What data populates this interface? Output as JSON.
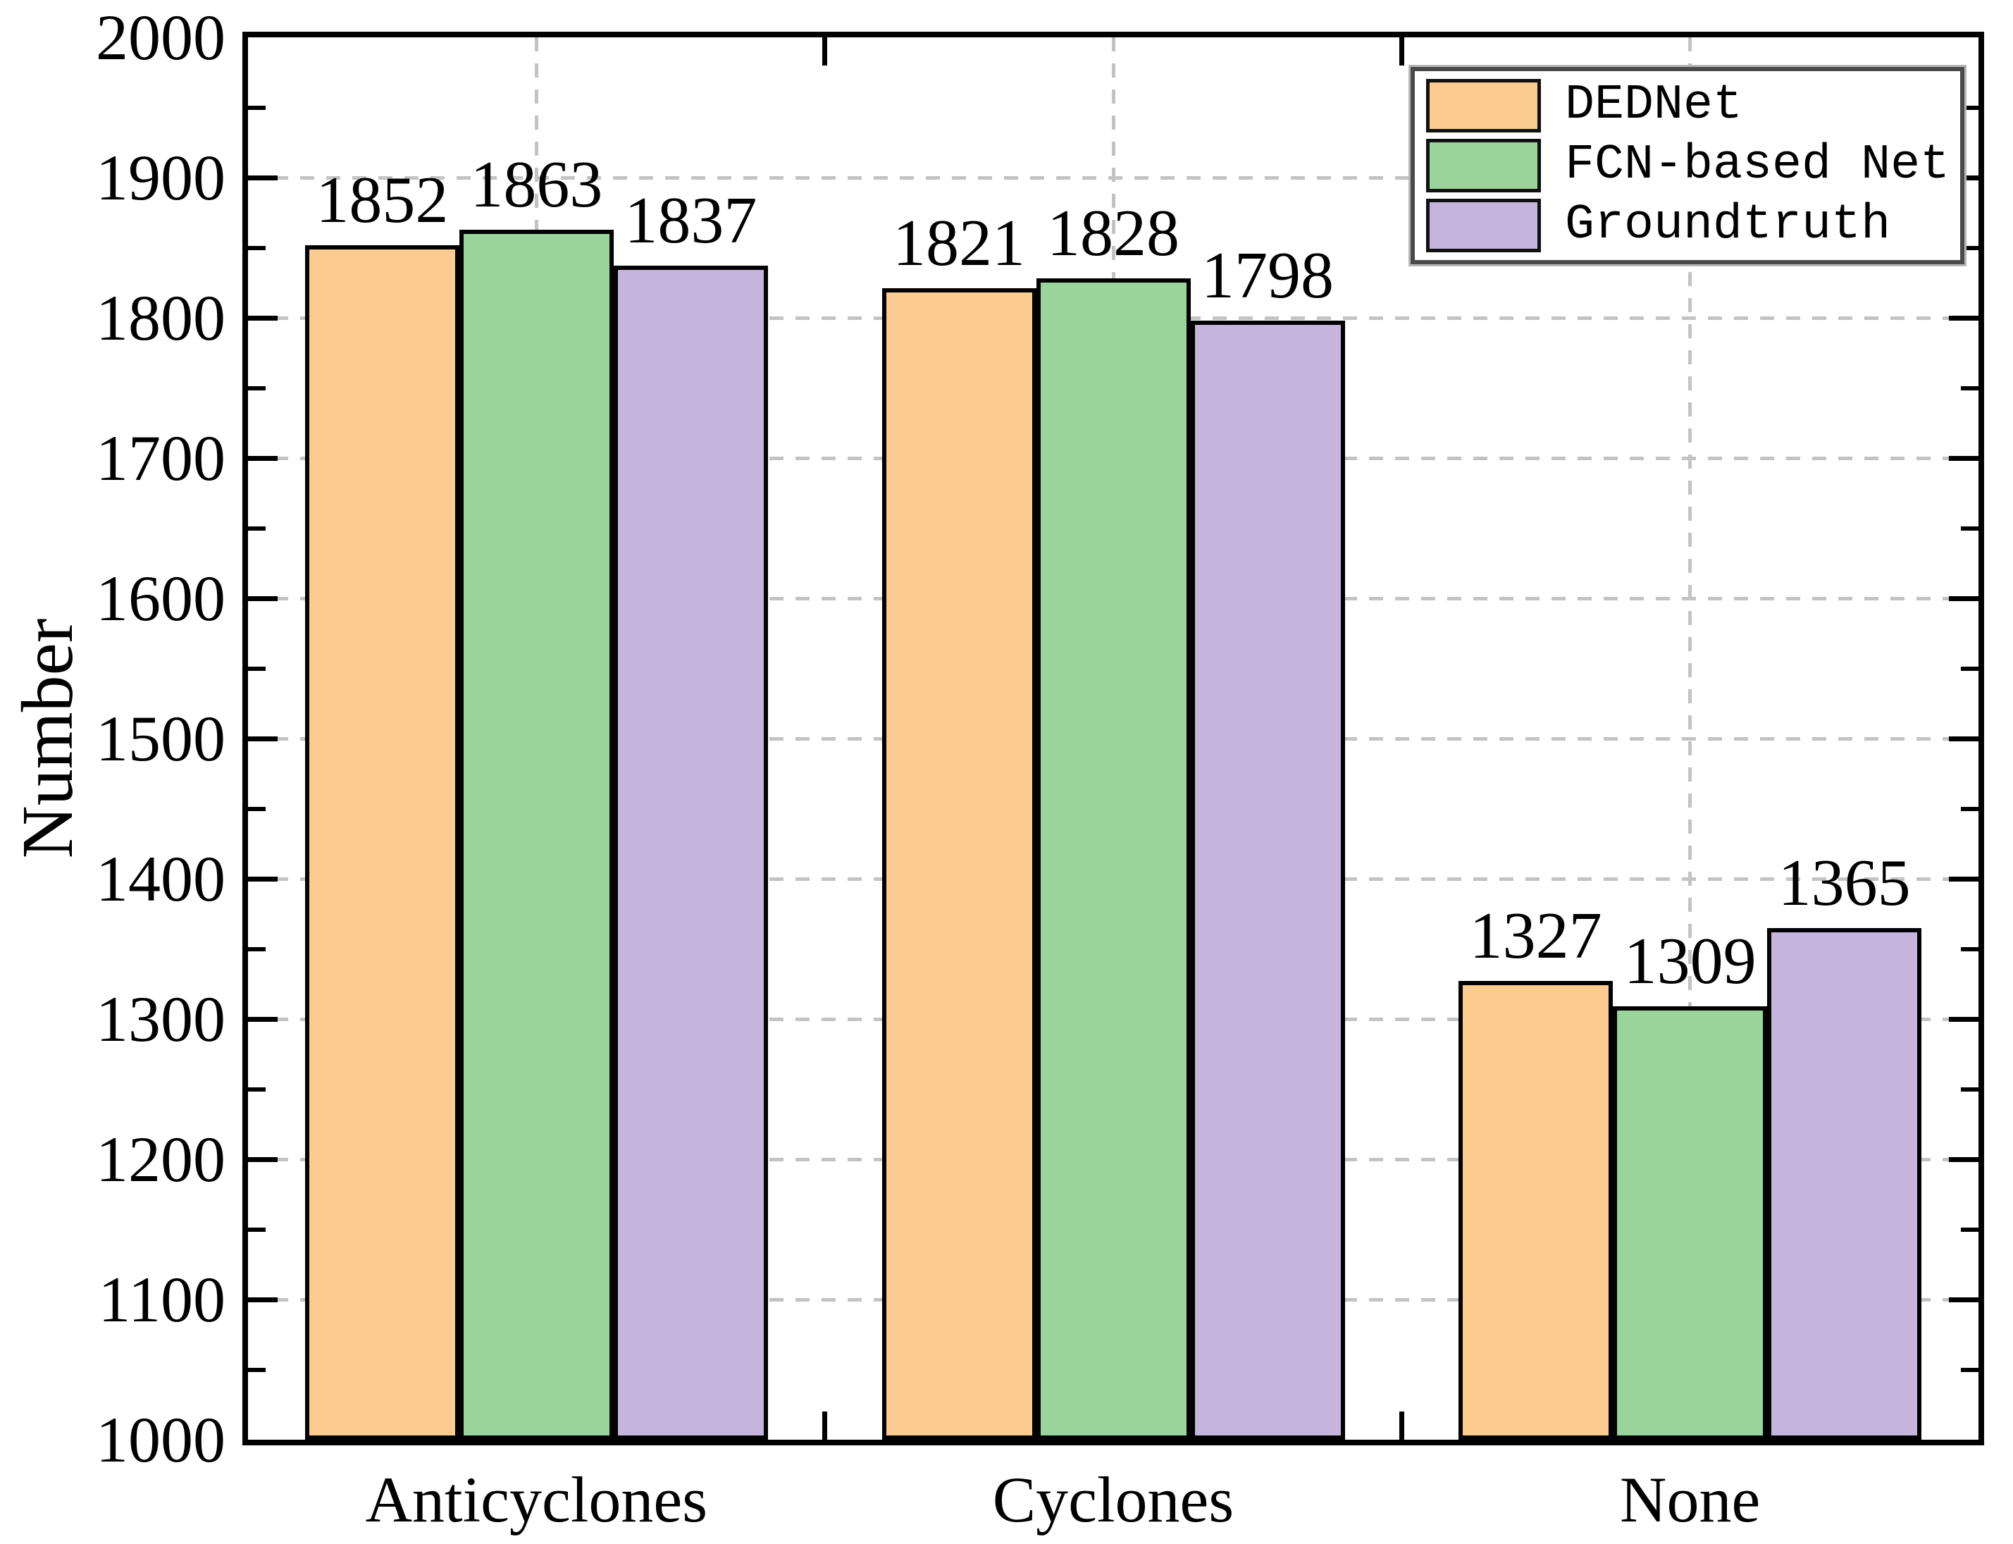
{
  "chart_data": {
    "type": "bar",
    "title": "",
    "ylabel": "Number",
    "xlabel": "",
    "ylim": [
      1000,
      2000
    ],
    "y_major_ticks": [
      1000,
      1100,
      1200,
      1300,
      1400,
      1500,
      1600,
      1700,
      1800,
      1900,
      2000
    ],
    "y_minor_step": 50,
    "grid": "dashed",
    "grid_color": "#c3c3c3",
    "legend_position": "top-right",
    "bar_value_labels": true,
    "categories": [
      "Anticyclones",
      "Cyclones",
      "None"
    ],
    "series": [
      {
        "name": "DEDNet",
        "color": "#FCCB90",
        "values": [
          1852,
          1821,
          1327
        ]
      },
      {
        "name": "FCN-based Net",
        "color": "#99D59B",
        "values": [
          1863,
          1828,
          1309
        ]
      },
      {
        "name": "Groundtruth",
        "color": "#C5B4DC",
        "values": [
          1837,
          1798,
          1365
        ]
      }
    ]
  }
}
